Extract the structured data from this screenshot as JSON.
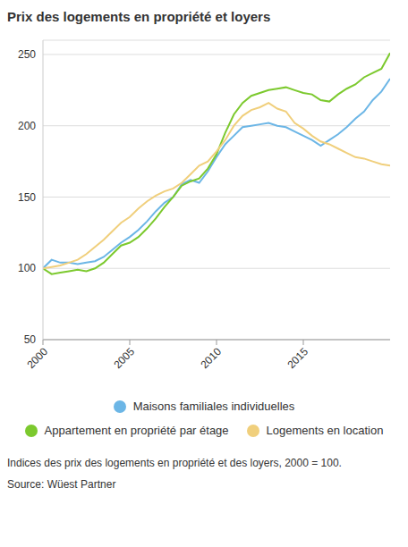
{
  "chart_data": {
    "type": "line",
    "title": "Prix des logements en propriété et loyers",
    "x": [
      2000,
      2000.5,
      2001,
      2001.5,
      2002,
      2002.5,
      2003,
      2003.5,
      2004,
      2004.5,
      2005,
      2005.5,
      2006,
      2006.5,
      2007,
      2007.5,
      2008,
      2008.5,
      2009,
      2009.5,
      2010,
      2010.5,
      2011,
      2011.5,
      2012,
      2012.5,
      2013,
      2013.5,
      2014,
      2014.5,
      2015,
      2015.5,
      2016,
      2016.5,
      2017,
      2017.5,
      2018,
      2018.5,
      2019,
      2019.5,
      2020
    ],
    "series": [
      {
        "name": "Maisons familiales individuelles",
        "color": "#6cb6e6",
        "values": [
          100,
          106,
          104,
          104,
          103,
          104,
          105,
          108,
          113,
          118,
          122,
          127,
          133,
          140,
          146,
          150,
          159,
          162,
          160,
          168,
          178,
          187,
          193,
          199,
          200,
          201,
          202,
          200,
          199,
          196,
          193,
          190,
          186,
          190,
          194,
          199,
          205,
          210,
          218,
          224,
          233
        ]
      },
      {
        "name": "Appartement en propriété par étage",
        "color": "#7cc92e",
        "values": [
          100,
          96,
          97,
          98,
          99,
          98,
          100,
          104,
          110,
          116,
          118,
          122,
          128,
          135,
          143,
          150,
          158,
          161,
          163,
          170,
          180,
          195,
          208,
          216,
          221,
          223,
          225,
          226,
          227,
          225,
          223,
          222,
          218,
          217,
          222,
          226,
          229,
          234,
          237,
          240,
          251
        ]
      },
      {
        "name": "Logements en location",
        "color": "#f0cf7c",
        "values": [
          100,
          101,
          102,
          104,
          106,
          110,
          115,
          120,
          126,
          132,
          136,
          142,
          147,
          151,
          154,
          156,
          160,
          166,
          172,
          175,
          182,
          190,
          200,
          207,
          211,
          213,
          216,
          212,
          210,
          202,
          198,
          193,
          189,
          187,
          184,
          181,
          178,
          177,
          175,
          173,
          172
        ]
      }
    ],
    "xlim": [
      2000,
      2020
    ],
    "xticks": [
      2000,
      2005,
      2010,
      2015
    ],
    "ylim": [
      50,
      260
    ],
    "yticks": [
      50,
      100,
      150,
      200,
      250
    ],
    "grid": true,
    "annotations": [
      "Indices des prix des logements en propriété et des loyers, 2000 = 100.",
      "Source: Wüest Partner"
    ]
  }
}
